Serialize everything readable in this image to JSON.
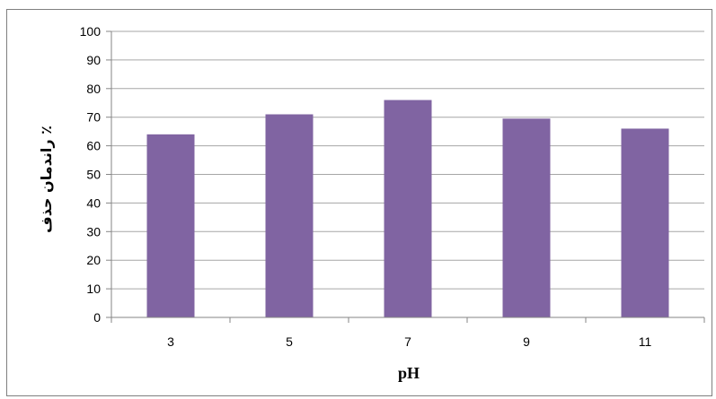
{
  "chart_data": {
    "type": "bar",
    "categories": [
      "3",
      "5",
      "7",
      "9",
      "11"
    ],
    "values": [
      64,
      71,
      76,
      69.5,
      66
    ],
    "title": "",
    "xlabel": "pH",
    "ylabel": "٪ راندمان حذف",
    "ylim": [
      0,
      100
    ],
    "yticks": [
      "0",
      "10",
      "20",
      "30",
      "40",
      "50",
      "60",
      "70",
      "80",
      "90",
      "100"
    ],
    "grid": true,
    "legend": "none",
    "colors": {
      "bar": "#8064a2",
      "grid": "#a6a6a6",
      "axis": "#868686"
    }
  }
}
